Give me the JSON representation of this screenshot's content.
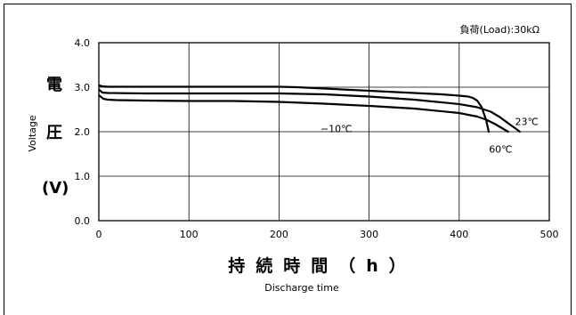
{
  "chart_data": {
    "type": "line",
    "load_label": "負荷(Load):30kΩ",
    "ylabel_jp": [
      "電",
      "圧"
    ],
    "ylabel_unit": "(V)",
    "ylabel_en": "Voltage",
    "xlabel_jp": "持続時間（h）",
    "xlabel_en": "Discharge time",
    "xlim": [
      0,
      500
    ],
    "ylim": [
      0.0,
      4.0
    ],
    "x_ticks": [
      "0",
      "100",
      "200",
      "300",
      "400",
      "500"
    ],
    "y_ticks": [
      "0.0",
      "1.0",
      "2.0",
      "3.0",
      "4.0"
    ],
    "grid": true,
    "series": [
      {
        "name": "23℃",
        "x": [
          0,
          4,
          10,
          50,
          100,
          150,
          200,
          250,
          300,
          350,
          400,
          420,
          435,
          445,
          455,
          462,
          468
        ],
        "y": [
          2.95,
          2.88,
          2.87,
          2.86,
          2.86,
          2.86,
          2.86,
          2.84,
          2.79,
          2.72,
          2.62,
          2.55,
          2.45,
          2.33,
          2.18,
          2.08,
          1.99
        ]
      },
      {
        "name": "60℃",
        "x": [
          0,
          4,
          10,
          50,
          100,
          150,
          200,
          220,
          250,
          300,
          350,
          380,
          400,
          410,
          415,
          420,
          425,
          430,
          433
        ],
        "y": [
          3.04,
          3.02,
          3.01,
          3.01,
          3.01,
          3.01,
          3.01,
          3.0,
          2.97,
          2.92,
          2.87,
          2.84,
          2.81,
          2.79,
          2.76,
          2.7,
          2.55,
          2.25,
          1.98
        ]
      },
      {
        "name": "−10℃",
        "x": [
          0,
          5,
          10,
          20,
          50,
          100,
          150,
          200,
          250,
          300,
          350,
          400,
          420,
          430,
          440,
          450,
          455
        ],
        "y": [
          2.82,
          2.74,
          2.72,
          2.71,
          2.7,
          2.69,
          2.69,
          2.67,
          2.63,
          2.58,
          2.52,
          2.42,
          2.34,
          2.27,
          2.17,
          2.05,
          1.99
        ]
      }
    ],
    "annotations": [
      {
        "text": "23℃",
        "series": "23℃",
        "x": 462,
        "y": 2.23
      },
      {
        "text": "60℃",
        "series": "60℃",
        "x": 433,
        "y": 1.61
      },
      {
        "text": "−10℃",
        "series": "−10℃",
        "x": 246,
        "y": 2.07
      }
    ]
  }
}
